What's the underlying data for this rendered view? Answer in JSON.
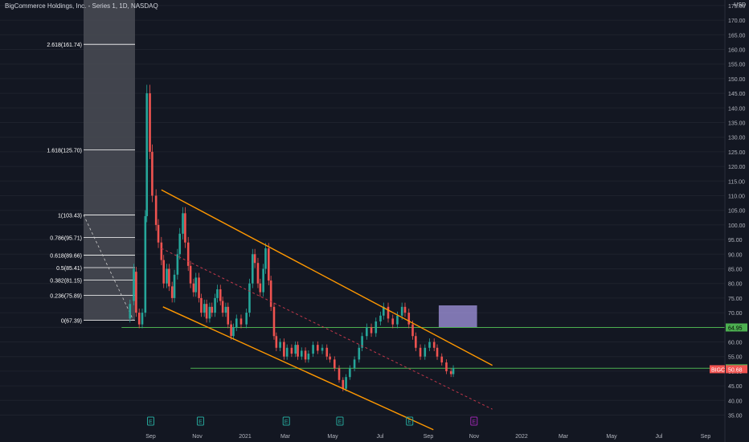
{
  "header": {
    "title": "BigCommerce Holdings, Inc. - Series 1, 1D, NASDAQ",
    "currency": "USD"
  },
  "colors": {
    "background": "#131722",
    "up": "#26a69a",
    "down": "#ef5350",
    "channel": "#ff9800",
    "median": "#c2374a",
    "support": "#4caf50",
    "resistance_zone": "#9b8fd6",
    "fib_line": "#ffffff",
    "fib_bg": "#4a4c55"
  },
  "chart_data": {
    "type": "candlestick",
    "ylim": [
      31,
      180
    ],
    "price_ticks": [
      35,
      40,
      45,
      50,
      55,
      60,
      65,
      70,
      75,
      80,
      85,
      90,
      95,
      100,
      105,
      110,
      115,
      120,
      125,
      130,
      135,
      140,
      145,
      150,
      155,
      160,
      165,
      170,
      175
    ],
    "time_ticks": [
      "Sep",
      "Nov",
      "2021",
      "Mar",
      "May",
      "Jul",
      "Sep",
      "Nov",
      "2022",
      "Mar",
      "May",
      "Jul",
      "Sep"
    ],
    "fib_levels": [
      {
        "label": "2.618(161.74)",
        "value": 161.74
      },
      {
        "label": "1.618(125.70)",
        "value": 125.7
      },
      {
        "label": "1(103.43)",
        "value": 103.43
      },
      {
        "label": "0.786(95.71)",
        "value": 95.71
      },
      {
        "label": "0.618(89.66)",
        "value": 89.66
      },
      {
        "label": "0.5(85.41)",
        "value": 85.41
      },
      {
        "label": "0.382(81.15)",
        "value": 81.15
      },
      {
        "label": "0.236(75.89)",
        "value": 75.89
      },
      {
        "label": "0(67.39)",
        "value": 67.39
      }
    ],
    "price_tags": [
      {
        "label": "64.95",
        "value": 64.95,
        "style": "green"
      },
      {
        "label": "50.99",
        "value": 50.99,
        "style": "green"
      },
      {
        "label": "50.68",
        "value": 50.68,
        "style": "red"
      }
    ],
    "symbol_tag": "BIGC",
    "events": [
      {
        "label": "E",
        "time": "2020-09-01",
        "color": "#26a69a"
      },
      {
        "label": "E",
        "time": "2020-11-05",
        "color": "#26a69a"
      },
      {
        "label": "E",
        "time": "2021-02-25",
        "color": "#26a69a"
      },
      {
        "label": "E",
        "time": "2021-05-06",
        "color": "#26a69a"
      },
      {
        "label": "E",
        "time": "2021-08-05",
        "color": "#26a69a"
      },
      {
        "label": "E",
        "time": "2021-10-28",
        "color": "#9c27b0"
      }
    ],
    "channel_upper": {
      "from": [
        "2020-09-15",
        112
      ],
      "to": [
        "2021-11-21",
        52
      ]
    },
    "channel_lower": {
      "from": [
        "2020-09-17",
        72
      ],
      "to": [
        "2021-09-05",
        30
      ]
    },
    "median_line": {
      "from": [
        "2020-09-15",
        92
      ],
      "to": [
        "2021-11-21",
        37
      ]
    },
    "support_lines": [
      {
        "value": 64.95,
        "from": "2020-07-25"
      },
      {
        "value": 50.99,
        "from": "2020-10-23"
      }
    ],
    "resistance_zone": {
      "from": "2021-09-12",
      "to": "2021-11-01",
      "low": 65,
      "high": 72.5
    },
    "candles": [
      [
        "2020-08-05",
        68,
        73
      ],
      [
        "2020-08-10",
        74,
        85
      ],
      [
        "2020-08-13",
        84,
        70
      ],
      [
        "2020-08-17",
        70,
        66
      ],
      [
        "2020-08-21",
        66,
        70
      ],
      [
        "2020-08-25",
        70,
        103
      ],
      [
        "2020-08-27",
        103,
        145
      ],
      [
        "2020-08-31",
        145,
        125
      ],
      [
        "2020-09-03",
        125,
        110
      ],
      [
        "2020-09-08",
        110,
        100
      ],
      [
        "2020-09-11",
        100,
        94
      ],
      [
        "2020-09-15",
        94,
        88
      ],
      [
        "2020-09-18",
        88,
        80
      ],
      [
        "2020-09-22",
        80,
        85
      ],
      [
        "2020-09-25",
        85,
        79
      ],
      [
        "2020-09-29",
        79,
        75
      ],
      [
        "2020-10-02",
        75,
        83
      ],
      [
        "2020-10-06",
        83,
        90
      ],
      [
        "2020-10-09",
        90,
        97
      ],
      [
        "2020-10-13",
        97,
        104
      ],
      [
        "2020-10-16",
        104,
        94
      ],
      [
        "2020-10-20",
        94,
        86
      ],
      [
        "2020-10-23",
        86,
        80
      ],
      [
        "2020-10-27",
        80,
        77
      ],
      [
        "2020-10-30",
        77,
        82
      ],
      [
        "2020-11-03",
        82,
        75
      ],
      [
        "2020-11-06",
        75,
        70
      ],
      [
        "2020-11-10",
        70,
        73
      ],
      [
        "2020-11-13",
        73,
        68
      ],
      [
        "2020-11-17",
        68,
        72
      ],
      [
        "2020-11-20",
        72,
        70
      ],
      [
        "2020-11-24",
        70,
        75
      ],
      [
        "2020-11-27",
        75,
        78
      ],
      [
        "2020-12-01",
        78,
        74
      ],
      [
        "2020-12-04",
        74,
        70
      ],
      [
        "2020-12-08",
        70,
        72
      ],
      [
        "2020-12-11",
        72,
        66
      ],
      [
        "2020-12-15",
        66,
        62
      ],
      [
        "2020-12-18",
        62,
        65
      ],
      [
        "2020-12-22",
        65,
        68
      ],
      [
        "2020-12-28",
        68,
        66
      ],
      [
        "2021-01-04",
        66,
        70
      ],
      [
        "2021-01-08",
        70,
        80
      ],
      [
        "2021-01-12",
        80,
        90
      ],
      [
        "2021-01-15",
        90,
        87
      ],
      [
        "2021-01-19",
        87,
        80
      ],
      [
        "2021-01-22",
        80,
        77
      ],
      [
        "2021-01-26",
        77,
        85
      ],
      [
        "2021-01-29",
        85,
        92
      ],
      [
        "2021-02-02",
        92,
        81
      ],
      [
        "2021-02-05",
        81,
        72
      ],
      [
        "2021-02-09",
        72,
        62
      ],
      [
        "2021-02-12",
        62,
        58
      ],
      [
        "2021-02-17",
        58,
        60
      ],
      [
        "2021-02-22",
        60,
        55
      ],
      [
        "2021-02-26",
        55,
        58
      ],
      [
        "2021-03-04",
        58,
        56
      ],
      [
        "2021-03-09",
        56,
        59
      ],
      [
        "2021-03-12",
        59,
        55
      ],
      [
        "2021-03-17",
        55,
        57
      ],
      [
        "2021-03-22",
        57,
        54
      ],
      [
        "2021-03-26",
        54,
        56
      ],
      [
        "2021-04-01",
        56,
        59
      ],
      [
        "2021-04-07",
        59,
        57
      ],
      [
        "2021-04-13",
        57,
        58
      ],
      [
        "2021-04-19",
        58,
        55
      ],
      [
        "2021-04-23",
        55,
        54
      ],
      [
        "2021-04-29",
        54,
        51
      ],
      [
        "2021-05-05",
        51,
        47
      ],
      [
        "2021-05-10",
        47,
        44
      ],
      [
        "2021-05-14",
        44,
        48
      ],
      [
        "2021-05-19",
        48,
        51
      ],
      [
        "2021-05-25",
        51,
        54
      ],
      [
        "2021-05-31",
        54,
        58
      ],
      [
        "2021-06-04",
        58,
        62
      ],
      [
        "2021-06-10",
        62,
        65
      ],
      [
        "2021-06-16",
        65,
        63
      ],
      [
        "2021-06-22",
        63,
        67
      ],
      [
        "2021-06-28",
        67,
        69
      ],
      [
        "2021-07-02",
        69,
        72
      ],
      [
        "2021-07-08",
        72,
        68
      ],
      [
        "2021-07-14",
        68,
        66
      ],
      [
        "2021-07-20",
        66,
        69
      ],
      [
        "2021-07-26",
        69,
        72
      ],
      [
        "2021-07-30",
        72,
        70
      ],
      [
        "2021-08-04",
        70,
        66
      ],
      [
        "2021-08-09",
        66,
        62
      ],
      [
        "2021-08-13",
        62,
        58
      ],
      [
        "2021-08-19",
        58,
        55
      ],
      [
        "2021-08-25",
        55,
        58
      ],
      [
        "2021-08-31",
        58,
        60
      ],
      [
        "2021-09-06",
        60,
        58
      ],
      [
        "2021-09-10",
        58,
        55
      ],
      [
        "2021-09-16",
        55,
        53
      ],
      [
        "2021-09-22",
        53,
        50
      ],
      [
        "2021-09-28",
        50,
        49
      ],
      [
        "2021-10-01",
        49,
        51
      ]
    ]
  }
}
